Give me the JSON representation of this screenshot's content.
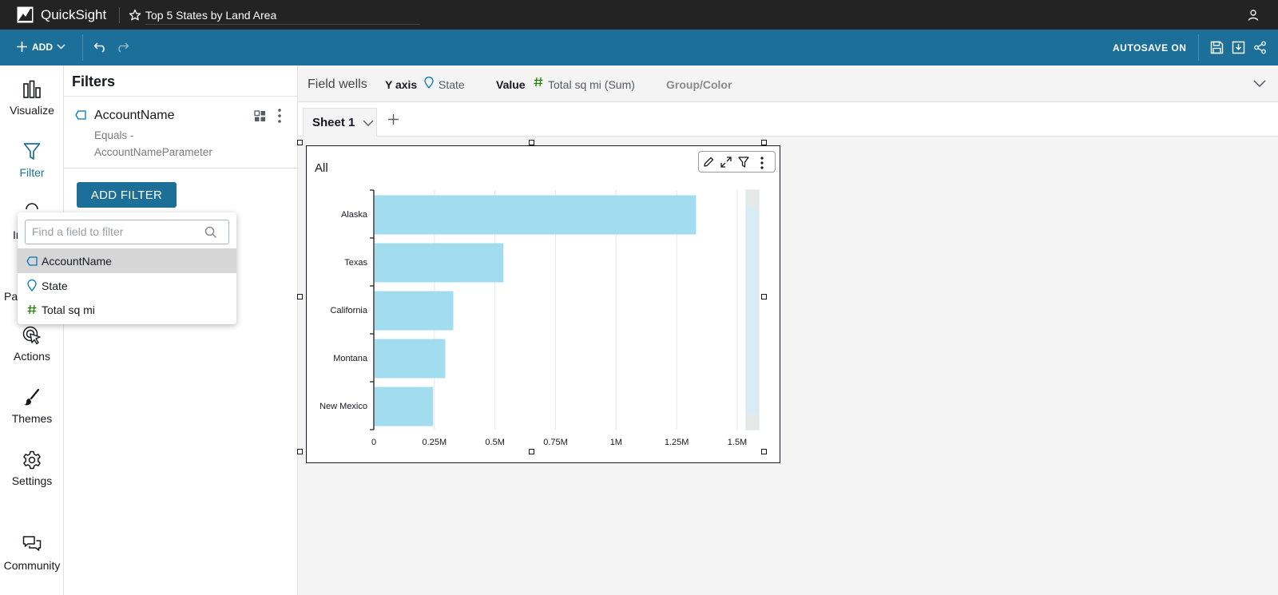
{
  "app": {
    "brand": "QuickSight",
    "analysis_title": "Top 5 States by Land Area"
  },
  "toolbar": {
    "add_label": "ADD",
    "autosave_label": "AUTOSAVE ON"
  },
  "rail": {
    "items": [
      {
        "label": "Visualize",
        "icon": "bar-chart-icon"
      },
      {
        "label": "Filter",
        "icon": "filter-icon",
        "active": true
      },
      {
        "label": "Actions",
        "icon": "cursor-click-icon"
      },
      {
        "label": "Themes",
        "icon": "paintbrush-icon"
      },
      {
        "label": "Settings",
        "icon": "gear-icon"
      },
      {
        "label": "Community",
        "icon": "chat-icon"
      }
    ],
    "partial_labels": [
      "In",
      "Par"
    ]
  },
  "filters_panel": {
    "title": "Filters",
    "filter": {
      "field": "AccountName",
      "description_line1": "Equals -",
      "description_line2": "AccountNameParameter"
    },
    "add_filter_label": "ADD FILTER"
  },
  "field_dropdown": {
    "placeholder": "Find a field to filter",
    "fields": [
      {
        "name": "AccountName",
        "type": "dimension",
        "highlighted": true
      },
      {
        "name": "State",
        "type": "geo"
      },
      {
        "name": "Total sq mi",
        "type": "measure"
      }
    ]
  },
  "field_wells": {
    "label": "Field wells",
    "y_axis_label": "Y axis",
    "y_axis_value": "State",
    "value_label": "Value",
    "value_value": "Total sq mi (Sum)",
    "group_label": "Group/Color"
  },
  "sheets": {
    "tabs": [
      "Sheet 1"
    ]
  },
  "visual": {
    "title": "All"
  },
  "colors": {
    "brand_blue": "#1b6f98",
    "bar": "#a2dcef",
    "dimension_icon": "#0073bb",
    "measure_icon": "#1d8102"
  },
  "chart_data": {
    "type": "bar",
    "orientation": "horizontal",
    "categories": [
      "Alaska",
      "Texas",
      "California",
      "Montana",
      "New Mexico"
    ],
    "values": [
      1330000,
      535000,
      328000,
      295000,
      245000
    ],
    "xlim": [
      0,
      1500000
    ],
    "x_ticks": [
      "0",
      "0.25M",
      "0.5M",
      "0.75M",
      "1M",
      "1.25M",
      "1.5M"
    ],
    "x_tick_values": [
      0,
      250000,
      500000,
      750000,
      1000000,
      1250000,
      1500000
    ],
    "grid": true
  }
}
